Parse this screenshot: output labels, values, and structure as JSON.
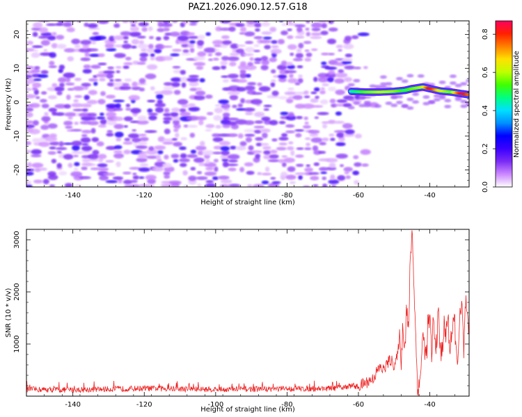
{
  "title": "PAZ1.2026.090.12.57.G18",
  "chart_data": [
    {
      "type": "heatmap",
      "title": "PAZ1.2026.090.12.57.G18",
      "xlabel": "Height of straight line (km)",
      "ylabel": "Frequency (Hz)",
      "xlim": [
        -153,
        -29
      ],
      "ylim": [
        -25,
        24
      ],
      "xticks": [
        -140,
        -120,
        -100,
        -80,
        -60,
        -40
      ],
      "yticks": [
        -20,
        -10,
        0,
        10,
        20
      ],
      "colorbar": {
        "label": "Normalized spectral amplitude",
        "range": [
          0,
          0.87
        ],
        "ticks": [
          "0.0",
          "0.2",
          "0.4",
          "0.6",
          "0.8"
        ],
        "colors": [
          "#ffffff",
          "#cc88ff",
          "#7b2cf5",
          "#3a00ff",
          "#0000ff",
          "#0090ff",
          "#00e0ff",
          "#00ff80",
          "#40ff00",
          "#c0ff00",
          "#ffe000",
          "#ff8000",
          "#ff2000",
          "#ff0060"
        ]
      },
      "noise_region": {
        "x": [
          -153,
          -62
        ],
        "y": [
          -25,
          24
        ],
        "typical_amplitude": [
          0.02,
          0.15
        ]
      },
      "signal_ridge": [
        {
          "x": -62,
          "y": 3.2,
          "v": 0.45
        },
        {
          "x": -58,
          "y": 3.0,
          "v": 0.55
        },
        {
          "x": -54,
          "y": 3.0,
          "v": 0.6
        },
        {
          "x": -50,
          "y": 3.2,
          "v": 0.58
        },
        {
          "x": -47,
          "y": 3.5,
          "v": 0.5
        },
        {
          "x": -45,
          "y": 4.0,
          "v": 0.55
        },
        {
          "x": -42,
          "y": 4.5,
          "v": 0.6
        },
        {
          "x": -40,
          "y": 4.0,
          "v": 0.85
        },
        {
          "x": -37,
          "y": 3.3,
          "v": 0.62
        },
        {
          "x": -34,
          "y": 3.0,
          "v": 0.55
        },
        {
          "x": -31,
          "y": 2.5,
          "v": 0.87
        },
        {
          "x": -29,
          "y": 2.2,
          "v": 0.75
        }
      ]
    },
    {
      "type": "line",
      "xlabel": "Height of straight line (km)",
      "ylabel": "SNR (10 * v/v)",
      "xlim": [
        -153,
        -29
      ],
      "ylim": [
        0,
        3200
      ],
      "xticks": [
        -140,
        -120,
        -100,
        -80,
        -60,
        -40
      ],
      "yticks": [
        1000,
        2000,
        3000
      ],
      "color": "#ee2222",
      "x": [
        -153,
        -140,
        -120,
        -100,
        -80,
        -66,
        -62,
        -60,
        -58,
        -56,
        -55,
        -54,
        -53,
        -52,
        -51,
        -50,
        -49,
        -48.5,
        -48,
        -47.5,
        -47,
        -46.5,
        -46,
        -45.5,
        -45,
        -44.5,
        -44,
        -43.5,
        -43,
        -42.5,
        -42,
        -41.5,
        -41,
        -40.5,
        -40,
        -39.5,
        -39,
        -38.5,
        -38,
        -37.5,
        -37,
        -36.5,
        -36,
        -35.5,
        -35,
        -34.5,
        -34,
        -33.5,
        -33,
        -32.5,
        -32,
        -31.5,
        -31,
        -30.5,
        -30,
        -29.5,
        -29
      ],
      "y": [
        130,
        120,
        150,
        130,
        140,
        150,
        200,
        180,
        260,
        330,
        450,
        550,
        500,
        620,
        700,
        600,
        760,
        1200,
        650,
        1450,
        900,
        1750,
        1100,
        2600,
        3200,
        2300,
        1200,
        300,
        100,
        600,
        1100,
        1000,
        700,
        1400,
        1450,
        800,
        1500,
        900,
        1200,
        1600,
        700,
        1000,
        1300,
        1150,
        1600,
        900,
        1200,
        1250,
        1450,
        600,
        1000,
        1500,
        1700,
        800,
        1800,
        1350,
        1150
      ]
    }
  ]
}
